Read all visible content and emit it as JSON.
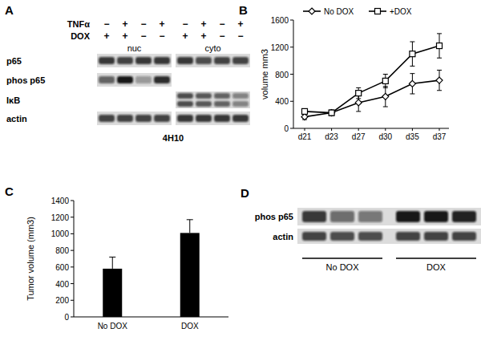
{
  "chart_data": [
    {
      "type": "line",
      "panel_label": "B",
      "ylabel": "volume mm3",
      "categories": [
        "d21",
        "d23",
        "d27",
        "d30",
        "d35",
        "d37"
      ],
      "series": [
        {
          "name": "No DOX",
          "color": "#000000",
          "marker": "diamond",
          "values": [
            170,
            230,
            380,
            470,
            660,
            710
          ],
          "errors": [
            40,
            40,
            130,
            150,
            150,
            150
          ]
        },
        {
          "name": "+DOX",
          "color": "#000000",
          "marker": "square",
          "values": [
            250,
            230,
            520,
            700,
            1100,
            1220
          ],
          "errors": [
            40,
            40,
            80,
            100,
            180,
            180
          ]
        }
      ],
      "ylim": [
        0,
        1600
      ],
      "yticks": [
        0,
        400,
        800,
        1200,
        1600
      ],
      "grid": false,
      "legend": "top"
    },
    {
      "type": "bar",
      "panel_label": "C",
      "ylabel": "Tumor volume (mm3)",
      "categories": [
        "No DOX",
        "DOX"
      ],
      "values": [
        580,
        1010
      ],
      "errors": [
        140,
        160
      ],
      "color": "#000000",
      "ylim": [
        0,
        1400
      ],
      "yticks": [
        0,
        200,
        400,
        600,
        800,
        1000,
        1200,
        1400
      ],
      "grid": false
    }
  ],
  "blots": [
    {
      "panel_label": "A",
      "caption": "4H10",
      "conditions": [
        {
          "label": "TNFα",
          "signs": [
            "−",
            "+",
            "−",
            "+",
            "−",
            "+",
            "−",
            "+"
          ]
        },
        {
          "label": "DOX",
          "signs": [
            "+",
            "+",
            "−",
            "−",
            "+",
            "+",
            "−",
            "−"
          ]
        }
      ],
      "fractions": [
        "nuc",
        "cyto"
      ],
      "rows": [
        {
          "label": "p65",
          "bands": 1,
          "nuc": [
            0.8,
            0.75,
            0.8,
            0.8
          ],
          "cyto": [
            0.8,
            0.7,
            0.75,
            0.75
          ]
        },
        {
          "label": "phos p65",
          "bands": 1,
          "nuc": [
            0.6,
            0.95,
            0.35,
            0.85
          ],
          "cyto": null
        },
        {
          "label": "IκB",
          "bands": 2,
          "nuc": null,
          "cyto": [
            0.7,
            0.65,
            0.6,
            0.45
          ]
        },
        {
          "label": "actin",
          "bands": 1,
          "nuc": [
            0.75,
            0.75,
            0.75,
            0.75
          ],
          "cyto": [
            0.8,
            0.8,
            0.8,
            0.8
          ]
        }
      ]
    },
    {
      "panel_label": "D",
      "rows": [
        {
          "label": "phos p65",
          "lanes": [
            0.8,
            0.55,
            0.5,
            0.95,
            0.95,
            0.9
          ]
        },
        {
          "label": "actin",
          "lanes": [
            0.75,
            0.7,
            0.7,
            0.75,
            0.75,
            0.75
          ]
        }
      ],
      "groups": [
        {
          "label": "No DOX",
          "lanes": 3
        },
        {
          "label": "DOX",
          "lanes": 3
        }
      ]
    }
  ]
}
